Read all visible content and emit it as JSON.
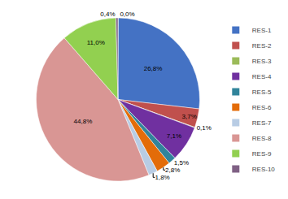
{
  "chart_data": {
    "type": "pie",
    "categories": [
      null,
      "RES-1",
      "RES-2",
      "RES-3",
      "RES-4",
      "RES-5",
      "RES-6",
      "RES-7",
      "RES-8",
      "RES-9",
      "RES-10"
    ],
    "values": [
      0.05,
      26.8,
      3.7,
      0.1,
      7.1,
      1.5,
      2.8,
      1.8,
      44.8,
      11.0,
      0.4
    ],
    "value_labels": [
      "0,0%",
      "26,8%",
      "3,7%",
      "0,1%",
      "7,1%",
      "1,5%",
      "2,8%",
      "1,8%",
      "44,8%",
      "11,0%",
      "0,4%"
    ],
    "colors": [
      "#f2f2f2",
      "#4472c4",
      "#c0504d",
      "#9bbb59",
      "#7030a0",
      "#31849b",
      "#e36c09",
      "#b8cce4",
      "#d99694",
      "#92d050",
      "#7f6084"
    ],
    "legend": "right"
  }
}
